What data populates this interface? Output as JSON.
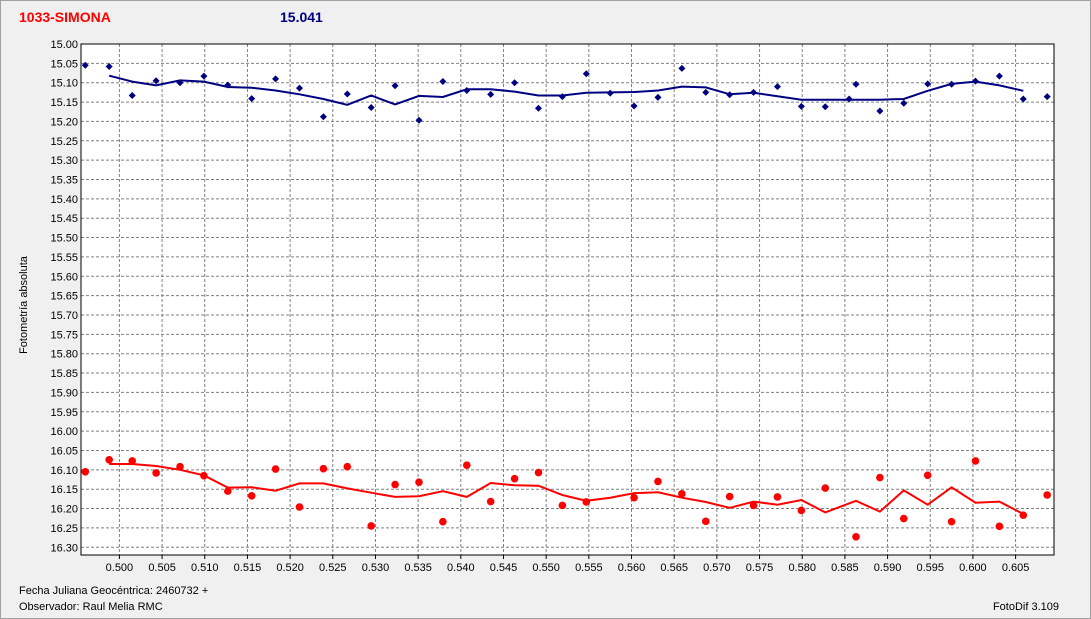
{
  "window": {
    "title": "1033-SIMONA",
    "subtitle": "15.041"
  },
  "footer": {
    "date_label": "Fecha Juliana Geocéntrica: 2460732 +",
    "observer_label": "Observador: Raul Melia RMC",
    "software": "FotoDif 3.109"
  },
  "chart_data": {
    "type": "scatter",
    "title": "1033-SIMONA",
    "subtitle": "15.041",
    "xlabel": "",
    "ylabel": "Fotometría absoluta",
    "xlim": [
      0.4955,
      0.6095
    ],
    "ylim": [
      15.0,
      16.32
    ],
    "y_inverted": true,
    "grid": true,
    "x_ticks": [
      0.5,
      0.505,
      0.51,
      0.515,
      0.52,
      0.525,
      0.53,
      0.535,
      0.54,
      0.545,
      0.55,
      0.555,
      0.56,
      0.565,
      0.57,
      0.575,
      0.58,
      0.585,
      0.59,
      0.595,
      0.6,
      0.605
    ],
    "y_ticks": [
      15.0,
      15.05,
      15.1,
      15.15,
      15.2,
      15.25,
      15.3,
      15.35,
      15.4,
      15.45,
      15.5,
      15.55,
      15.6,
      15.65,
      15.7,
      15.75,
      15.8,
      15.85,
      15.9,
      15.95,
      16.0,
      16.05,
      16.1,
      16.15,
      16.2,
      16.25,
      16.3
    ],
    "colors": {
      "comparison": "#000080",
      "target": "#ff0000",
      "grid": "#808080"
    },
    "series": [
      {
        "marker": "diamond",
        "color": "#000080",
        "points": [
          [
            0.496,
            15.055
          ],
          [
            0.4988,
            15.058
          ],
          [
            0.5015,
            15.133
          ],
          [
            0.5043,
            15.095
          ],
          [
            0.5071,
            15.1
          ],
          [
            0.5099,
            15.083
          ],
          [
            0.5127,
            15.106
          ],
          [
            0.5155,
            15.141
          ],
          [
            0.5183,
            15.09
          ],
          [
            0.5211,
            15.114
          ],
          [
            0.5239,
            15.188
          ],
          [
            0.5267,
            15.129
          ],
          [
            0.5295,
            15.164
          ],
          [
            0.5323,
            15.108
          ],
          [
            0.5351,
            15.197
          ],
          [
            0.5379,
            15.097
          ],
          [
            0.5407,
            15.12
          ],
          [
            0.5435,
            15.13
          ],
          [
            0.5463,
            15.1
          ],
          [
            0.5491,
            15.166
          ],
          [
            0.5519,
            15.136
          ],
          [
            0.5547,
            15.077
          ],
          [
            0.5575,
            15.127
          ],
          [
            0.5603,
            15.16
          ],
          [
            0.5631,
            15.138
          ],
          [
            0.5659,
            15.063
          ],
          [
            0.5687,
            15.125
          ],
          [
            0.5715,
            15.131
          ],
          [
            0.5743,
            15.125
          ],
          [
            0.5771,
            15.11
          ],
          [
            0.5799,
            15.161
          ],
          [
            0.5827,
            15.162
          ],
          [
            0.5855,
            15.142
          ],
          [
            0.5863,
            15.104
          ],
          [
            0.5891,
            15.173
          ],
          [
            0.5919,
            15.153
          ],
          [
            0.5947,
            15.103
          ],
          [
            0.5975,
            15.104
          ],
          [
            0.6003,
            15.096
          ],
          [
            0.6031,
            15.083
          ],
          [
            0.6059,
            15.142
          ],
          [
            0.6087,
            15.136
          ]
        ],
        "trend": [
          [
            0.4988,
            15.082
          ],
          [
            0.5015,
            15.097
          ],
          [
            0.5043,
            15.107
          ],
          [
            0.5071,
            15.094
          ],
          [
            0.5099,
            15.097
          ],
          [
            0.5127,
            15.111
          ],
          [
            0.5155,
            15.113
          ],
          [
            0.5183,
            15.12
          ],
          [
            0.5211,
            15.13
          ],
          [
            0.5239,
            15.142
          ],
          [
            0.5267,
            15.157
          ],
          [
            0.5295,
            15.133
          ],
          [
            0.5323,
            15.156
          ],
          [
            0.5351,
            15.134
          ],
          [
            0.5379,
            15.137
          ],
          [
            0.5407,
            15.117
          ],
          [
            0.5435,
            15.117
          ],
          [
            0.5463,
            15.123
          ],
          [
            0.5491,
            15.133
          ],
          [
            0.5519,
            15.133
          ],
          [
            0.5547,
            15.126
          ],
          [
            0.5575,
            15.125
          ],
          [
            0.5603,
            15.124
          ],
          [
            0.5631,
            15.12
          ],
          [
            0.5659,
            15.11
          ],
          [
            0.5687,
            15.112
          ],
          [
            0.5715,
            15.13
          ],
          [
            0.5743,
            15.126
          ],
          [
            0.5771,
            15.135
          ],
          [
            0.5799,
            15.144
          ],
          [
            0.5827,
            15.144
          ],
          [
            0.5855,
            15.144
          ],
          [
            0.5891,
            15.144
          ],
          [
            0.5919,
            15.142
          ],
          [
            0.5947,
            15.121
          ],
          [
            0.5975,
            15.103
          ],
          [
            0.6003,
            15.097
          ],
          [
            0.6031,
            15.107
          ],
          [
            0.6059,
            15.121
          ]
        ]
      },
      {
        "marker": "circle",
        "color": "#ff0000",
        "points": [
          [
            0.496,
            16.105
          ],
          [
            0.4988,
            16.074
          ],
          [
            0.5015,
            16.077
          ],
          [
            0.5043,
            16.108
          ],
          [
            0.5071,
            16.092
          ],
          [
            0.5099,
            16.115
          ],
          [
            0.5127,
            16.155
          ],
          [
            0.5155,
            16.167
          ],
          [
            0.5183,
            16.098
          ],
          [
            0.5211,
            16.196
          ],
          [
            0.5239,
            16.097
          ],
          [
            0.5267,
            16.092
          ],
          [
            0.5295,
            16.245
          ],
          [
            0.5323,
            16.138
          ],
          [
            0.5351,
            16.132
          ],
          [
            0.5379,
            16.234
          ],
          [
            0.5407,
            16.088
          ],
          [
            0.5435,
            16.182
          ],
          [
            0.5463,
            16.123
          ],
          [
            0.5491,
            16.107
          ],
          [
            0.5519,
            16.192
          ],
          [
            0.5547,
            16.183
          ],
          [
            0.5603,
            16.172
          ],
          [
            0.5631,
            16.13
          ],
          [
            0.5659,
            16.162
          ],
          [
            0.5687,
            16.233
          ],
          [
            0.5715,
            16.169
          ],
          [
            0.5743,
            16.192
          ],
          [
            0.5771,
            16.17
          ],
          [
            0.5799,
            16.205
          ],
          [
            0.5827,
            16.147
          ],
          [
            0.5863,
            16.273
          ],
          [
            0.5891,
            16.12
          ],
          [
            0.5919,
            16.226
          ],
          [
            0.5947,
            16.114
          ],
          [
            0.5975,
            16.234
          ],
          [
            0.6003,
            16.077
          ],
          [
            0.6031,
            16.246
          ],
          [
            0.6059,
            16.217
          ],
          [
            0.6087,
            16.165
          ]
        ],
        "trend": [
          [
            0.4988,
            16.085
          ],
          [
            0.5015,
            16.085
          ],
          [
            0.5043,
            16.09
          ],
          [
            0.5071,
            16.1
          ],
          [
            0.5099,
            16.114
          ],
          [
            0.5127,
            16.146
          ],
          [
            0.5155,
            16.145
          ],
          [
            0.5183,
            16.154
          ],
          [
            0.5211,
            16.135
          ],
          [
            0.5239,
            16.135
          ],
          [
            0.5267,
            16.148
          ],
          [
            0.5295,
            16.159
          ],
          [
            0.5323,
            16.17
          ],
          [
            0.5351,
            16.168
          ],
          [
            0.5379,
            16.155
          ],
          [
            0.5407,
            16.17
          ],
          [
            0.5435,
            16.134
          ],
          [
            0.5463,
            16.14
          ],
          [
            0.5491,
            16.141
          ],
          [
            0.5519,
            16.165
          ],
          [
            0.5547,
            16.18
          ],
          [
            0.5575,
            16.172
          ],
          [
            0.5603,
            16.16
          ],
          [
            0.5631,
            16.158
          ],
          [
            0.5659,
            16.172
          ],
          [
            0.5687,
            16.183
          ],
          [
            0.5715,
            16.198
          ],
          [
            0.5743,
            16.182
          ],
          [
            0.5771,
            16.19
          ],
          [
            0.5799,
            16.178
          ],
          [
            0.5827,
            16.21
          ],
          [
            0.5863,
            16.18
          ],
          [
            0.5891,
            16.208
          ],
          [
            0.5919,
            16.153
          ],
          [
            0.5947,
            16.19
          ],
          [
            0.5975,
            16.145
          ],
          [
            0.6003,
            16.185
          ],
          [
            0.6031,
            16.182
          ],
          [
            0.6059,
            16.214
          ]
        ]
      }
    ]
  }
}
